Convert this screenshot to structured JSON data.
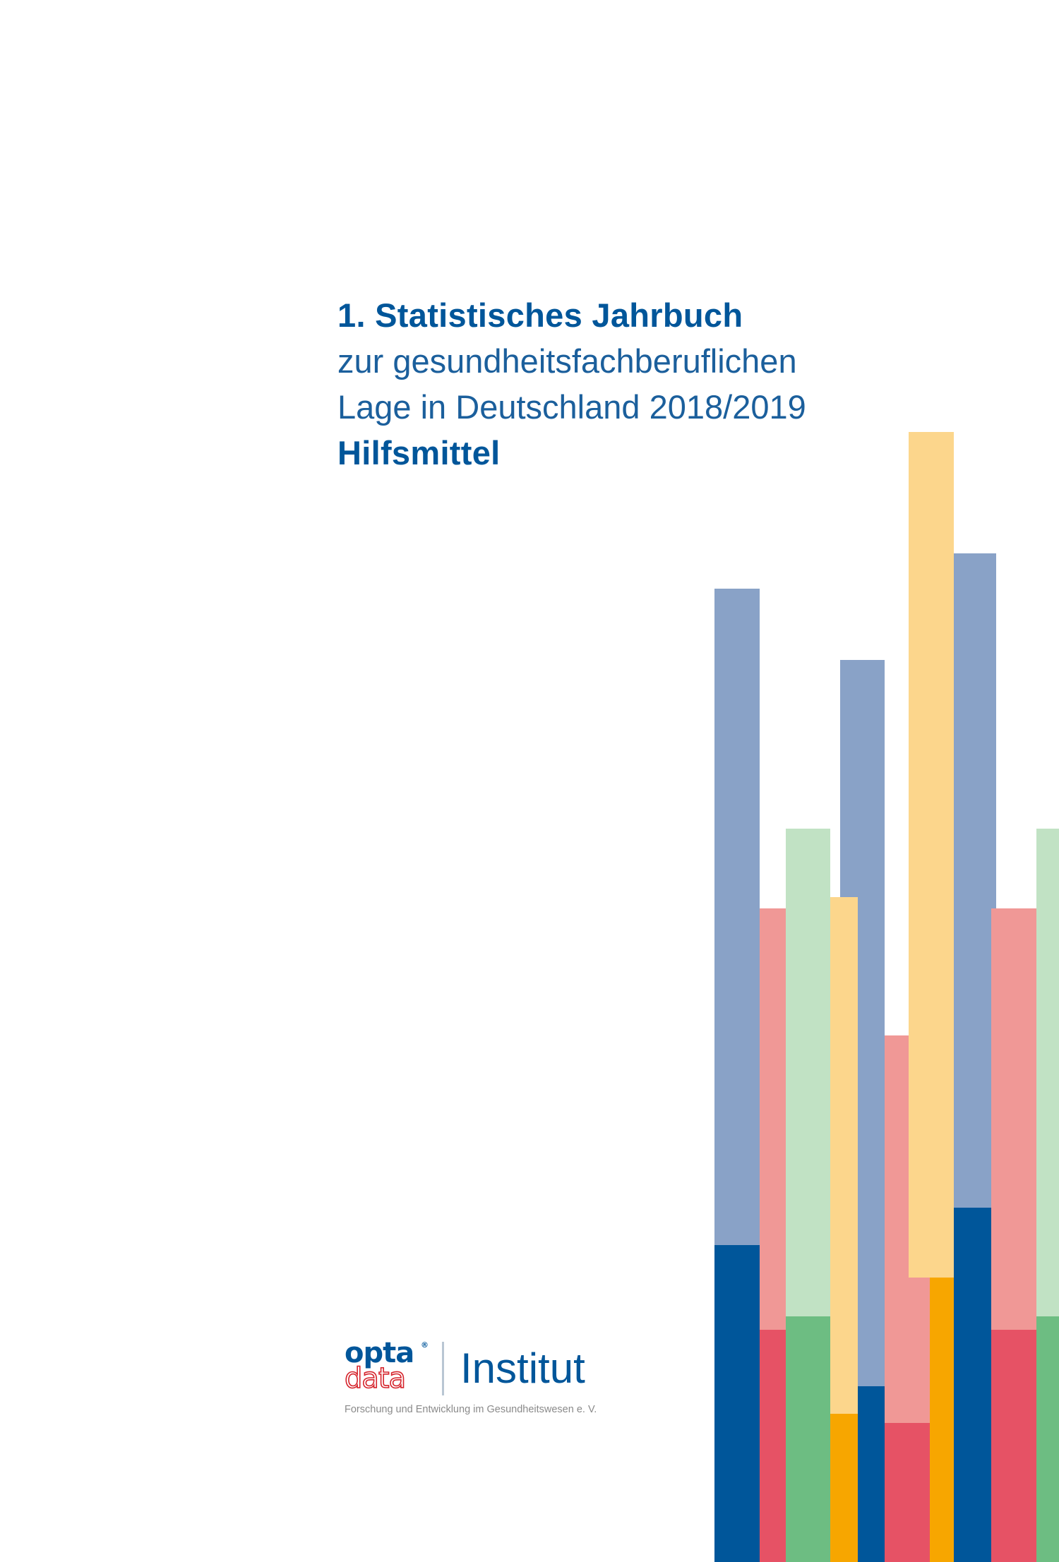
{
  "title": {
    "line1": "1. Statistisches Jahrbuch",
    "line2": "zur gesundheitsfachberuflichen",
    "line3": "Lage in Deutschland 2018/2019",
    "line4": "Hilfsmittel"
  },
  "logo": {
    "word_top": "opta",
    "registered": "®",
    "word_bottom": "data",
    "institut": "Institut",
    "tagline": "Forschung und Entwicklung im Gesundheitswesen e. V."
  },
  "colors": {
    "dark_blue": "#00569a",
    "light_blue": "#89a2c7",
    "red": "#e65265",
    "light_red": "#f09896",
    "green": "#6dbd82",
    "light_green": "#c1e2c4",
    "orange": "#f7a600",
    "light_orange": "#fcd68c"
  },
  "decoration": {
    "name": "colored-bar-graphic"
  }
}
